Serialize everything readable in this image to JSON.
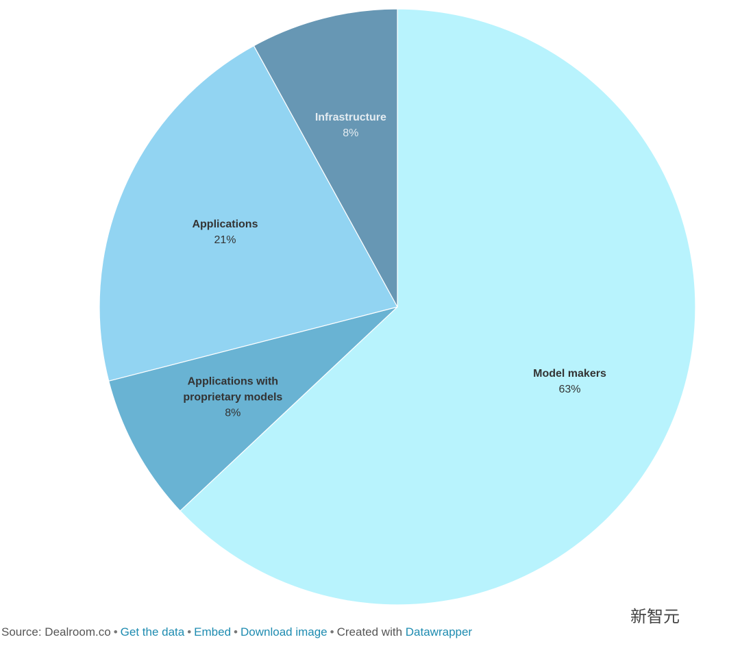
{
  "chart_data": {
    "type": "pie",
    "categories": [
      "Model makers",
      "Applications with proprietary models",
      "Applications",
      "Infrastructure"
    ],
    "values": [
      63,
      8,
      21,
      8
    ],
    "value_labels": [
      "63%",
      "8%",
      "21%",
      "8%"
    ],
    "colors": [
      "#b8f3fd",
      "#69b3d3",
      "#92d4f2",
      "#6797b4"
    ]
  },
  "footer": {
    "source": "Source: Dealroom.co",
    "separator": "•",
    "links": [
      "Get the data",
      "Embed",
      "Download image"
    ],
    "created": "Created with",
    "credit": "Datawrapper"
  },
  "watermark": "新智元"
}
